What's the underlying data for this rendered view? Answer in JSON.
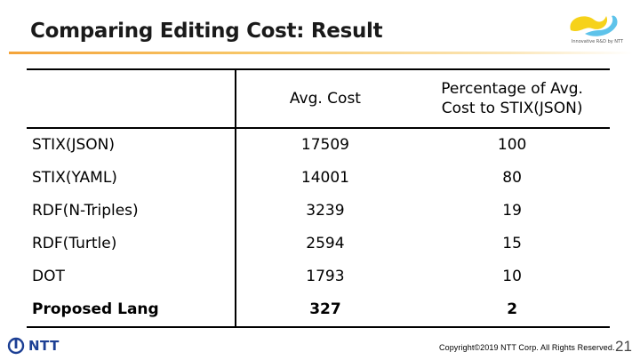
{
  "slide": {
    "title": "Comparing Editing Cost: Result",
    "logo_caption": "Innovative R&D by NTT",
    "brand": "NTT",
    "copyright": "Copyright©2019  NTT Corp. All Rights Reserved.",
    "page_number": "21"
  },
  "table": {
    "headers": [
      "",
      "Avg. Cost",
      "Percentage of Avg. Cost to STIX(JSON)"
    ],
    "rows": [
      {
        "name": "STIX(JSON)",
        "cost": "17509",
        "pct": "100"
      },
      {
        "name": "STIX(YAML)",
        "cost": "14001",
        "pct": "80"
      },
      {
        "name": "RDF(N-Triples)",
        "cost": "3239",
        "pct": "19"
      },
      {
        "name": "RDF(Turtle)",
        "cost": "2594",
        "pct": "15"
      },
      {
        "name": "DOT",
        "cost": "1793",
        "pct": "10"
      },
      {
        "name": "Proposed Lang",
        "cost": "327",
        "pct": "2"
      }
    ]
  },
  "colors": {
    "accent": "#f4a43a",
    "brand_blue": "#1c3f94",
    "logo_yellow": "#f6d21a",
    "logo_blue": "#5ec3ea"
  }
}
